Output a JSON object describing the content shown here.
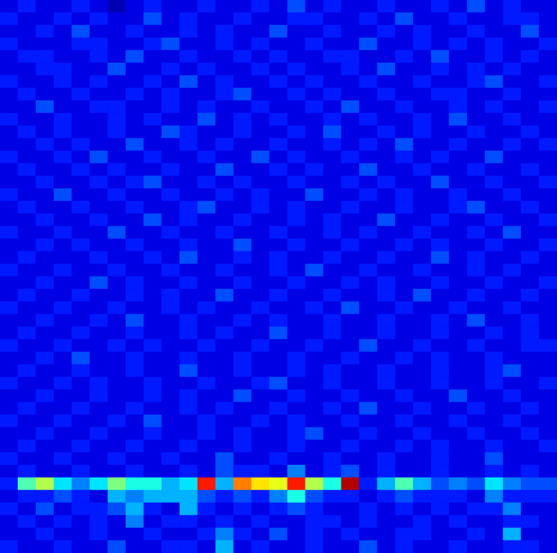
{
  "chart_data": {
    "type": "heatmap",
    "tick_labels": false,
    "zlim": [
      0,
      20
    ],
    "cells": [
      [
        2,
        3,
        2,
        2,
        3,
        2,
        1,
        2,
        3,
        2,
        2,
        3,
        2,
        2,
        3,
        2,
        4,
        2,
        3,
        2,
        2,
        3,
        2,
        2,
        3,
        2,
        4,
        2,
        3,
        2,
        2
      ],
      [
        3,
        2,
        2,
        3,
        2,
        3,
        2,
        2,
        4,
        2,
        3,
        2,
        2,
        3,
        2,
        2,
        3,
        3,
        2,
        2,
        3,
        2,
        4,
        2,
        2,
        3,
        2,
        2,
        3,
        3,
        2
      ],
      [
        2,
        2,
        3,
        2,
        4,
        2,
        2,
        3,
        2,
        2,
        3,
        2,
        3,
        2,
        2,
        4,
        2,
        2,
        3,
        2,
        2,
        3,
        2,
        3,
        2,
        2,
        3,
        2,
        2,
        4,
        2
      ],
      [
        3,
        2,
        2,
        2,
        3,
        3,
        2,
        2,
        3,
        4,
        2,
        2,
        3,
        2,
        3,
        2,
        2,
        3,
        2,
        2,
        4,
        2,
        2,
        3,
        2,
        3,
        2,
        3,
        2,
        2,
        3
      ],
      [
        2,
        3,
        3,
        2,
        2,
        3,
        2,
        4,
        2,
        2,
        3,
        2,
        2,
        3,
        2,
        3,
        2,
        2,
        3,
        3,
        2,
        2,
        3,
        2,
        4,
        2,
        2,
        3,
        2,
        3,
        2
      ],
      [
        2,
        2,
        3,
        3,
        2,
        2,
        4,
        2,
        2,
        3,
        2,
        3,
        2,
        2,
        3,
        2,
        3,
        2,
        2,
        3,
        2,
        4,
        2,
        2,
        3,
        2,
        3,
        2,
        3,
        2,
        2
      ],
      [
        3,
        2,
        2,
        3,
        2,
        3,
        2,
        2,
        3,
        2,
        4,
        2,
        3,
        2,
        2,
        3,
        2,
        3,
        2,
        2,
        3,
        2,
        2,
        3,
        2,
        2,
        3,
        4,
        2,
        2,
        3
      ],
      [
        2,
        3,
        2,
        2,
        3,
        2,
        2,
        3,
        2,
        3,
        2,
        2,
        3,
        4,
        2,
        2,
        3,
        2,
        3,
        2,
        2,
        3,
        2,
        2,
        3,
        3,
        2,
        2,
        3,
        2,
        2
      ],
      [
        2,
        2,
        4,
        2,
        2,
        3,
        3,
        2,
        2,
        3,
        2,
        3,
        2,
        2,
        3,
        2,
        2,
        3,
        2,
        4,
        2,
        2,
        3,
        2,
        2,
        3,
        2,
        3,
        2,
        2,
        3
      ],
      [
        3,
        2,
        2,
        3,
        2,
        2,
        3,
        2,
        3,
        2,
        2,
        4,
        2,
        3,
        2,
        3,
        2,
        2,
        3,
        2,
        3,
        2,
        2,
        3,
        2,
        4,
        2,
        2,
        3,
        2,
        2
      ],
      [
        2,
        3,
        2,
        3,
        2,
        2,
        3,
        2,
        2,
        4,
        3,
        2,
        2,
        3,
        2,
        2,
        3,
        2,
        4,
        2,
        2,
        3,
        2,
        3,
        2,
        2,
        3,
        2,
        2,
        3,
        2
      ],
      [
        2,
        2,
        3,
        2,
        3,
        2,
        2,
        4,
        2,
        2,
        3,
        2,
        3,
        2,
        2,
        3,
        2,
        2,
        3,
        2,
        3,
        2,
        4,
        2,
        2,
        3,
        2,
        2,
        3,
        2,
        3
      ],
      [
        3,
        2,
        2,
        3,
        2,
        4,
        2,
        2,
        3,
        2,
        2,
        3,
        2,
        2,
        4,
        2,
        3,
        2,
        2,
        3,
        2,
        2,
        3,
        2,
        3,
        2,
        2,
        4,
        2,
        2,
        2
      ],
      [
        2,
        3,
        2,
        2,
        3,
        2,
        3,
        2,
        2,
        3,
        2,
        2,
        4,
        2,
        2,
        3,
        2,
        3,
        2,
        2,
        4,
        2,
        2,
        3,
        2,
        2,
        3,
        2,
        2,
        3,
        2
      ],
      [
        2,
        2,
        3,
        2,
        2,
        3,
        2,
        3,
        4,
        2,
        2,
        3,
        2,
        3,
        2,
        2,
        3,
        2,
        2,
        3,
        2,
        3,
        2,
        2,
        4,
        2,
        2,
        3,
        2,
        2,
        3
      ],
      [
        3,
        2,
        2,
        4,
        2,
        2,
        3,
        2,
        2,
        3,
        2,
        2,
        3,
        2,
        3,
        2,
        2,
        4,
        2,
        2,
        3,
        2,
        3,
        2,
        2,
        3,
        2,
        2,
        3,
        2,
        2
      ],
      [
        2,
        3,
        2,
        2,
        3,
        2,
        2,
        3,
        2,
        2,
        3,
        4,
        2,
        2,
        3,
        2,
        3,
        2,
        2,
        3,
        2,
        2,
        3,
        2,
        2,
        3,
        4,
        2,
        2,
        3,
        2
      ],
      [
        2,
        2,
        3,
        2,
        2,
        3,
        2,
        2,
        4,
        2,
        3,
        2,
        2,
        3,
        2,
        2,
        3,
        2,
        3,
        2,
        2,
        4,
        2,
        2,
        3,
        2,
        2,
        3,
        2,
        2,
        3
      ],
      [
        3,
        2,
        2,
        3,
        2,
        2,
        4,
        2,
        2,
        3,
        2,
        2,
        3,
        2,
        2,
        3,
        2,
        2,
        3,
        2,
        3,
        2,
        2,
        3,
        2,
        2,
        3,
        2,
        4,
        2,
        2
      ],
      [
        2,
        2,
        3,
        2,
        3,
        2,
        2,
        3,
        2,
        2,
        3,
        2,
        2,
        4,
        2,
        2,
        3,
        2,
        2,
        3,
        2,
        2,
        3,
        2,
        3,
        2,
        2,
        3,
        2,
        2,
        3
      ],
      [
        2,
        3,
        2,
        2,
        2,
        3,
        2,
        2,
        3,
        2,
        4,
        2,
        2,
        3,
        2,
        3,
        2,
        2,
        3,
        2,
        2,
        3,
        2,
        2,
        4,
        2,
        3,
        2,
        2,
        3,
        2
      ],
      [
        3,
        2,
        2,
        3,
        2,
        2,
        3,
        2,
        2,
        3,
        2,
        2,
        3,
        2,
        2,
        3,
        2,
        4,
        2,
        2,
        3,
        2,
        2,
        3,
        2,
        2,
        3,
        2,
        3,
        2,
        2
      ],
      [
        2,
        2,
        3,
        2,
        2,
        4,
        2,
        3,
        2,
        2,
        3,
        2,
        2,
        3,
        2,
        2,
        3,
        2,
        2,
        3,
        2,
        3,
        2,
        2,
        3,
        2,
        2,
        3,
        2,
        2,
        3
      ],
      [
        2,
        3,
        2,
        2,
        3,
        2,
        2,
        3,
        2,
        3,
        2,
        2,
        4,
        2,
        2,
        3,
        2,
        2,
        3,
        2,
        2,
        3,
        2,
        4,
        2,
        2,
        3,
        2,
        2,
        3,
        2
      ],
      [
        3,
        2,
        2,
        3,
        2,
        2,
        3,
        2,
        2,
        3,
        2,
        3,
        2,
        2,
        3,
        2,
        2,
        3,
        2,
        4,
        2,
        2,
        3,
        2,
        2,
        3,
        2,
        2,
        3,
        2,
        2
      ],
      [
        2,
        2,
        3,
        2,
        2,
        3,
        2,
        4,
        2,
        2,
        3,
        2,
        2,
        3,
        2,
        3,
        2,
        2,
        3,
        2,
        2,
        3,
        2,
        2,
        3,
        2,
        4,
        2,
        2,
        3,
        2
      ],
      [
        2,
        3,
        2,
        2,
        3,
        2,
        2,
        3,
        2,
        2,
        3,
        2,
        3,
        2,
        2,
        4,
        2,
        2,
        3,
        2,
        2,
        3,
        2,
        2,
        3,
        2,
        2,
        3,
        2,
        3,
        2
      ],
      [
        3,
        2,
        2,
        3,
        2,
        2,
        3,
        2,
        3,
        2,
        2,
        3,
        2,
        2,
        3,
        2,
        2,
        3,
        2,
        2,
        4,
        2,
        2,
        3,
        2,
        2,
        3,
        2,
        2,
        3,
        3
      ],
      [
        2,
        2,
        3,
        2,
        4,
        2,
        2,
        3,
        2,
        2,
        3,
        2,
        2,
        3,
        2,
        2,
        3,
        2,
        2,
        3,
        2,
        2,
        3,
        2,
        3,
        2,
        2,
        3,
        2,
        2,
        2
      ],
      [
        2,
        3,
        2,
        2,
        3,
        2,
        2,
        3,
        2,
        2,
        4,
        2,
        2,
        3,
        2,
        2,
        3,
        2,
        3,
        2,
        2,
        3,
        2,
        2,
        3,
        2,
        2,
        3,
        4,
        2,
        2
      ],
      [
        3,
        2,
        2,
        3,
        2,
        3,
        2,
        2,
        3,
        2,
        2,
        3,
        2,
        2,
        3,
        4,
        2,
        2,
        3,
        2,
        2,
        3,
        2,
        2,
        3,
        2,
        2,
        3,
        2,
        2,
        3
      ],
      [
        2,
        2,
        3,
        2,
        2,
        3,
        2,
        2,
        3,
        2,
        3,
        2,
        2,
        4,
        2,
        2,
        3,
        2,
        2,
        3,
        2,
        2,
        3,
        2,
        2,
        4,
        2,
        2,
        3,
        2,
        2
      ],
      [
        2,
        3,
        2,
        2,
        3,
        2,
        2,
        3,
        2,
        2,
        3,
        2,
        3,
        2,
        2,
        3,
        2,
        2,
        3,
        2,
        4,
        2,
        2,
        3,
        2,
        2,
        3,
        2,
        2,
        3,
        2
      ],
      [
        3,
        2,
        2,
        3,
        2,
        2,
        3,
        2,
        4,
        2,
        2,
        3,
        2,
        2,
        3,
        2,
        3,
        2,
        2,
        3,
        2,
        2,
        3,
        2,
        2,
        3,
        2,
        2,
        3,
        2,
        2
      ],
      [
        2,
        2,
        3,
        2,
        2,
        3,
        2,
        2,
        3,
        2,
        2,
        3,
        2,
        3,
        2,
        2,
        3,
        4,
        2,
        2,
        3,
        2,
        2,
        3,
        2,
        2,
        3,
        2,
        2,
        3,
        2
      ],
      [
        2,
        3,
        2,
        2,
        3,
        2,
        2,
        3,
        2,
        2,
        3,
        2,
        2,
        3,
        2,
        2,
        3,
        2,
        2,
        3,
        2,
        2,
        3,
        2,
        3,
        2,
        2,
        3,
        2,
        2,
        3
      ],
      [
        3,
        2,
        2,
        3,
        2,
        2,
        3,
        2,
        2,
        3,
        2,
        2,
        4,
        2,
        2,
        3,
        2,
        2,
        3,
        2,
        2,
        3,
        2,
        2,
        3,
        2,
        2,
        4,
        2,
        2,
        2
      ],
      [
        2,
        3,
        2,
        2,
        3,
        2,
        2,
        3,
        2,
        2,
        3,
        2,
        4,
        3,
        3,
        2,
        5,
        2,
        3,
        4,
        2,
        3,
        2,
        2,
        3,
        2,
        2,
        3,
        2,
        3,
        2
      ],
      [
        3,
        9,
        11,
        7,
        5,
        7,
        10,
        8,
        8,
        6,
        7,
        17,
        6,
        15,
        13,
        12,
        17,
        11,
        8,
        19,
        3,
        6,
        9,
        6,
        4,
        5,
        4,
        7,
        5,
        4,
        4
      ],
      [
        2,
        3,
        3,
        4,
        3,
        2,
        6,
        5,
        6,
        6,
        6,
        4,
        3,
        4,
        3,
        5,
        8,
        4,
        3,
        3,
        2,
        3,
        4,
        3,
        3,
        3,
        2,
        5,
        3,
        3,
        3
      ],
      [
        3,
        2,
        4,
        2,
        3,
        3,
        4,
        6,
        3,
        2,
        6,
        3,
        2,
        3,
        2,
        3,
        4,
        3,
        2,
        2,
        3,
        2,
        3,
        2,
        3,
        2,
        3,
        3,
        5,
        2,
        2
      ],
      [
        2,
        3,
        2,
        3,
        2,
        3,
        2,
        5,
        2,
        3,
        3,
        2,
        3,
        2,
        3,
        2,
        2,
        3,
        3,
        2,
        3,
        2,
        2,
        3,
        2,
        3,
        2,
        2,
        3,
        3,
        2
      ],
      [
        2,
        2,
        3,
        2,
        2,
        3,
        2,
        2,
        3,
        2,
        2,
        3,
        5,
        3,
        2,
        4,
        2,
        3,
        2,
        3,
        2,
        2,
        3,
        3,
        2,
        2,
        3,
        2,
        6,
        2,
        2
      ],
      [
        3,
        2,
        2,
        3,
        2,
        2,
        4,
        2,
        2,
        3,
        3,
        2,
        6,
        2,
        3,
        2,
        2,
        3,
        2,
        2,
        4,
        2,
        3,
        2,
        2,
        3,
        2,
        2,
        3,
        3,
        2
      ]
    ]
  }
}
